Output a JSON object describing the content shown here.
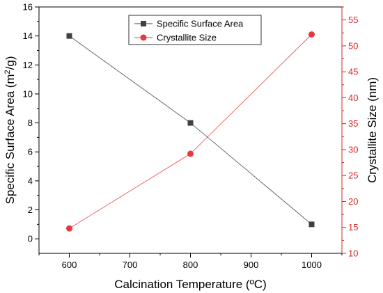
{
  "chart_data": {
    "type": "line",
    "title": "",
    "xlabel": "Calcination Temperature (ºC)",
    "xlim": [
      550,
      1050
    ],
    "xticks": [
      600,
      700,
      800,
      900,
      1000
    ],
    "y_left": {
      "label_main": "Specific Surface Area (m",
      "label_sup": "2",
      "label_tail": "/g)",
      "ylim": [
        -1,
        16
      ],
      "ticks": [
        0,
        2,
        4,
        6,
        8,
        10,
        12,
        14,
        16
      ],
      "color": "#000000"
    },
    "y_right": {
      "label": "Crystallite Size (nm)",
      "ylim": [
        10,
        57.5
      ],
      "ticks": [
        10,
        15,
        20,
        25,
        30,
        35,
        40,
        45,
        50,
        55
      ],
      "color": "#d62728"
    },
    "series": [
      {
        "name": "Specific Surface Area",
        "axis": "left",
        "marker": "square",
        "color": "#404040",
        "x": [
          600,
          800,
          1000
        ],
        "y": [
          14,
          8,
          1
        ]
      },
      {
        "name": "Crystallite Size",
        "axis": "right",
        "marker": "circle",
        "color": "#e8383d",
        "x": [
          600,
          800,
          1000
        ],
        "y": [
          14.8,
          29.2,
          52.2
        ]
      }
    ],
    "legend": {
      "position": "top-center"
    },
    "grid": false
  }
}
